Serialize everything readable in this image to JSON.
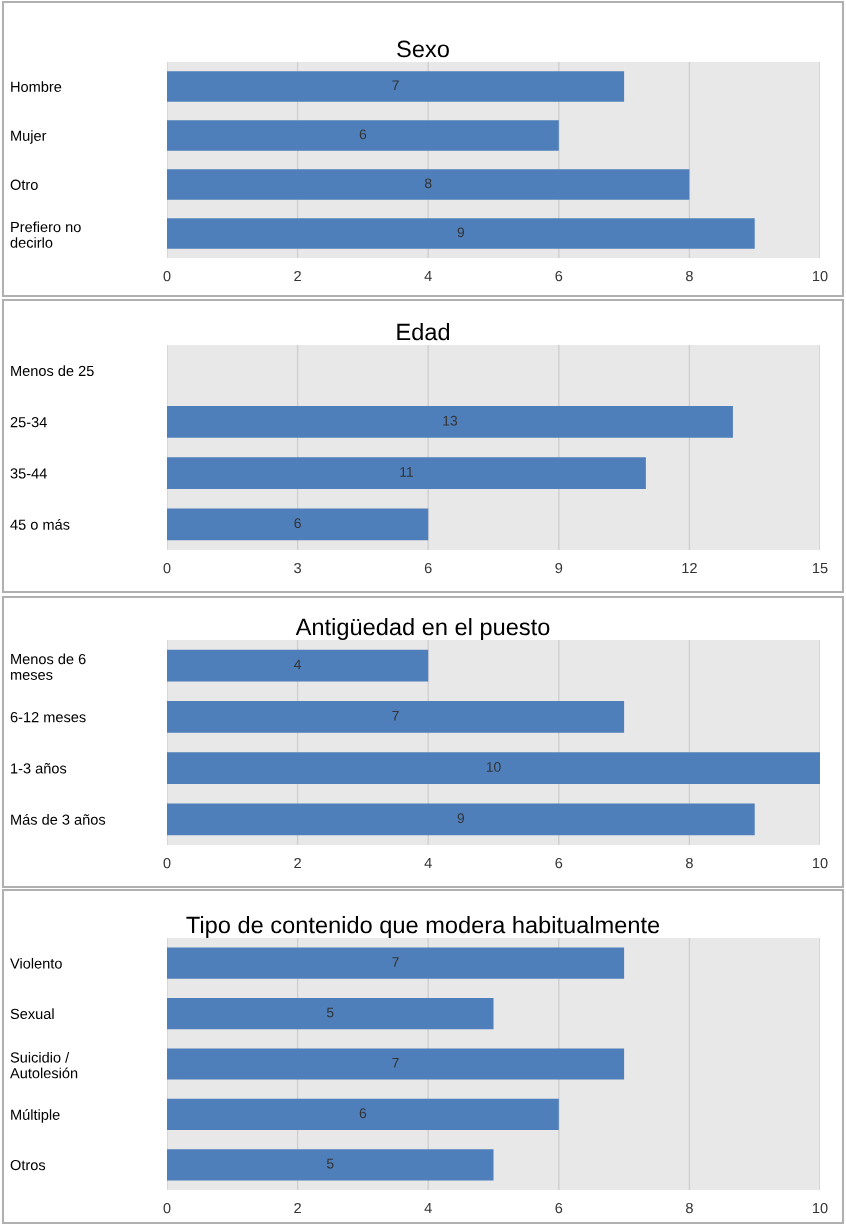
{
  "chart_data": [
    {
      "type": "bar",
      "orientation": "horizontal",
      "title": "Sexo",
      "categories": [
        "Hombre",
        "Mujer",
        "Otro",
        "Prefiero no\ndecirlo"
      ],
      "values": [
        7,
        6,
        8,
        9
      ],
      "color": "#4f7fba",
      "xlim": [
        0,
        10
      ],
      "xticks": [
        0,
        2,
        4,
        6,
        8,
        10
      ],
      "grid": "x",
      "data_labels": true
    },
    {
      "type": "bar",
      "orientation": "horizontal",
      "title": "Edad",
      "categories": [
        "Menos de 25",
        "25-34",
        "35-44",
        "45 o más"
      ],
      "values": [
        0,
        13,
        11,
        6
      ],
      "value_labels": [
        null,
        "13",
        "11",
        "6"
      ],
      "color": "#4f7fba",
      "xlim": [
        0,
        15
      ],
      "xticks": [
        0,
        3,
        6,
        9,
        12,
        15
      ],
      "grid": "x"
    },
    {
      "type": "bar",
      "orientation": "horizontal",
      "title": "Antigüedad en el puesto",
      "categories": [
        "Menos de 6\nmeses",
        "6-12 meses",
        "1-3 años",
        "Más de 3 años"
      ],
      "values": [
        4,
        7,
        10,
        9
      ],
      "color": "#4f7fba",
      "xlim": [
        0,
        10
      ],
      "xticks": [
        0,
        2,
        4,
        6,
        8,
        10
      ],
      "grid": "x",
      "data_labels": true
    },
    {
      "type": "bar",
      "orientation": "horizontal",
      "title": "Tipo de contenido que modera habitualmente",
      "categories": [
        "Violento",
        "Sexual",
        "Suicidio /\nAutolesión",
        "Múltiple",
        "Otros"
      ],
      "values": [
        7,
        5,
        7,
        6,
        5
      ],
      "color": "#4f7fba",
      "xlim": [
        0,
        10
      ],
      "xticks": [
        0,
        2,
        4,
        6,
        8,
        10
      ],
      "grid": "x",
      "data_labels": true
    }
  ]
}
